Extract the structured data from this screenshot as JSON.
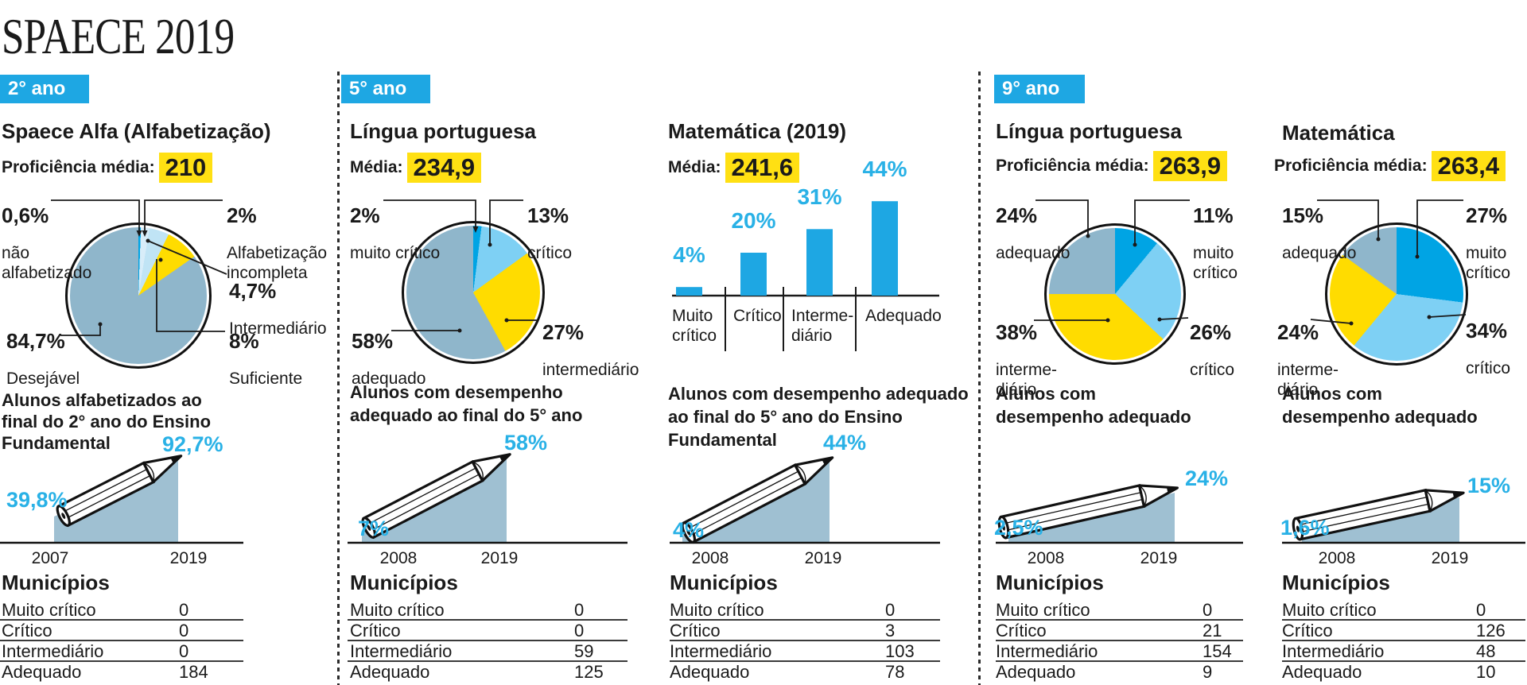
{
  "page_title": "SPAECE 2019",
  "sections": [
    {
      "label": "2° ano"
    },
    {
      "label": "5° ano"
    },
    {
      "label": "9° ano"
    }
  ],
  "colors": {
    "blue": "#1ea7e3",
    "cyan_text": "#29b1e6",
    "highlight_yellow": "#ffe013",
    "pie_bright_blue": "#00a4e4",
    "pie_sky_blue": "#7ed0f4",
    "pie_pale_blue_a": "#d8edf9",
    "pie_pale_blue_b": "#c0e4f5",
    "pie_yellow": "#ffdc00",
    "pie_steel": "#8fb6cb",
    "area": "#9fc0d2"
  },
  "chart_data": [
    {
      "group": "2° ano",
      "subtitle": "Spaece Alfa (Alfabetização)",
      "media": {
        "label": "Proficiência média:",
        "value": "210"
      },
      "pie": {
        "type": "pie",
        "slices": [
          {
            "label": "não alfabetizado",
            "display": "não\nalfabetizado",
            "pct": "0,6%",
            "value": 0.6,
            "color": "#00a4e4"
          },
          {
            "label": "Alfabetização incompleta",
            "display": "Alfabetização\nincompleta",
            "pct": "2%",
            "value": 2,
            "color": "#d8edf9"
          },
          {
            "label": "Intermediário",
            "display": "Intermediário",
            "pct": "4,7%",
            "value": 4.7,
            "color": "#c0e4f5"
          },
          {
            "label": "Suficiente",
            "display": "Suficiente",
            "pct": "8%",
            "value": 8,
            "color": "#ffdc00"
          },
          {
            "label": "Desejável",
            "display": "Desejável",
            "pct": "84,7%",
            "value": 84.7,
            "color": "#8fb6cb"
          }
        ]
      },
      "trend": {
        "type": "area",
        "title": "Alunos alfabetizados ao\nfinal do 2° ano do Ensino\nFundamental",
        "x": [
          "2007",
          "2019"
        ],
        "values": [
          39.8,
          92.7
        ],
        "value_labels": [
          "39,8%",
          "92,7%"
        ]
      },
      "municipios": {
        "heading": "Municípios",
        "rows": [
          {
            "label": "Muito crítico",
            "value": "0"
          },
          {
            "label": "Crítico",
            "value": "0"
          },
          {
            "label": "Intermediário",
            "value": "0"
          },
          {
            "label": "Adequado",
            "value": "184"
          }
        ]
      }
    },
    {
      "group": "5° ano",
      "subtitle": "Língua portuguesa",
      "media": {
        "label": "Média:",
        "value": "234,9"
      },
      "pie": {
        "type": "pie",
        "slices": [
          {
            "label": "muito crítico",
            "display": "muito crítico",
            "pct": "2%",
            "value": 2,
            "color": "#00a4e4"
          },
          {
            "label": "crítico",
            "display": "crítico",
            "pct": "13%",
            "value": 13,
            "color": "#7ed0f4"
          },
          {
            "label": "intermediário",
            "display": "intermediário",
            "pct": "27%",
            "value": 27,
            "color": "#ffdc00"
          },
          {
            "label": "adequado",
            "display": "adequado",
            "pct": "58%",
            "value": 58,
            "color": "#8fb6cb"
          }
        ]
      },
      "trend": {
        "type": "area",
        "title": "Alunos com desempenho\nadequado ao final do 5° ano",
        "x": [
          "2008",
          "2019"
        ],
        "values": [
          7,
          58
        ],
        "value_labels": [
          "7%",
          "58%"
        ]
      },
      "municipios": {
        "heading": "Municípios",
        "rows": [
          {
            "label": "Muito crítico",
            "value": "0"
          },
          {
            "label": "Crítico",
            "value": "0"
          },
          {
            "label": "Intermediário",
            "value": "59"
          },
          {
            "label": "Adequado",
            "value": "125"
          }
        ]
      }
    },
    {
      "group": "5° ano",
      "subtitle": "Matemática (2019)",
      "media": {
        "label": "Média:",
        "value": "241,6"
      },
      "bar": {
        "type": "bar",
        "categories": [
          "Muito crítico",
          "Crítico",
          "Intermediário",
          "Adequado"
        ],
        "category_display": [
          "Muito\ncrítico",
          "Crítico",
          "Interme-\ndiário",
          "Adequado"
        ],
        "values": [
          4,
          20,
          31,
          44
        ],
        "labels": [
          "4%",
          "20%",
          "31%",
          "44%"
        ],
        "ylim": [
          0,
          50
        ]
      },
      "trend": {
        "type": "area",
        "title": "Alunos com desempenho adequado\nao final do 5° ano do Ensino\nFundamental",
        "x": [
          "2008",
          "2019"
        ],
        "values": [
          4,
          44
        ],
        "value_labels": [
          "4%",
          "44%"
        ]
      },
      "municipios": {
        "heading": "Municípios",
        "rows": [
          {
            "label": "Muito crítico",
            "value": "0"
          },
          {
            "label": "Crítico",
            "value": "3"
          },
          {
            "label": "Intermediário",
            "value": "103"
          },
          {
            "label": "Adequado",
            "value": "78"
          }
        ]
      }
    },
    {
      "group": "9° ano",
      "subtitle": "Língua portuguesa",
      "media": {
        "label": "Proficiência média:",
        "value": "263,9"
      },
      "pie": {
        "type": "pie",
        "slices": [
          {
            "label": "muito crítico",
            "display": "muito\ncrítico",
            "pct": "11%",
            "value": 11,
            "color": "#00a4e4"
          },
          {
            "label": "crítico",
            "display": "crítico",
            "pct": "26%",
            "value": 26,
            "color": "#7ed0f4"
          },
          {
            "label": "intermediário",
            "display": "interme-\ndiário",
            "pct": "38%",
            "value": 38,
            "color": "#ffdc00"
          },
          {
            "label": "adequado",
            "display": "adequado",
            "pct": "24%",
            "value": 24,
            "color": "#8fb6cb"
          }
        ]
      },
      "trend": {
        "type": "area",
        "title": "Alunos com\ndesempenho adequado",
        "x": [
          "2008",
          "2019"
        ],
        "values": [
          2.5,
          24
        ],
        "value_labels": [
          "2,5%",
          "24%"
        ]
      },
      "municipios": {
        "heading": "Municípios",
        "rows": [
          {
            "label": "Muito crítico",
            "value": "0"
          },
          {
            "label": "Crítico",
            "value": "21"
          },
          {
            "label": "Intermediário",
            "value": "154"
          },
          {
            "label": "Adequado",
            "value": "9"
          }
        ]
      }
    },
    {
      "group": "9° ano",
      "subtitle": "Matemática",
      "media": {
        "label": "Proficiência média:",
        "value": "263,4"
      },
      "pie": {
        "type": "pie",
        "slices": [
          {
            "label": "muito crítico",
            "display": "muito\ncrítico",
            "pct": "27%",
            "value": 27,
            "color": "#00a4e4"
          },
          {
            "label": "crítico",
            "display": "crítico",
            "pct": "34%",
            "value": 34,
            "color": "#7ed0f4"
          },
          {
            "label": "intermediário",
            "display": "interme-\ndiário",
            "pct": "24%",
            "value": 24,
            "color": "#ffdc00"
          },
          {
            "label": "adequado",
            "display": "adequado",
            "pct": "15%",
            "value": 15,
            "color": "#8fb6cb"
          }
        ]
      },
      "trend": {
        "type": "area",
        "title": "Alunos com\ndesempenho adequado",
        "x": [
          "2008",
          "2019"
        ],
        "values": [
          1.6,
          15
        ],
        "value_labels": [
          "1,6%",
          "15%"
        ]
      },
      "municipios": {
        "heading": "Municípios",
        "rows": [
          {
            "label": "Muito crítico",
            "value": "0"
          },
          {
            "label": "Crítico",
            "value": "126"
          },
          {
            "label": "Intermediário",
            "value": "48"
          },
          {
            "label": "Adequado",
            "value": "10"
          }
        ]
      }
    }
  ]
}
